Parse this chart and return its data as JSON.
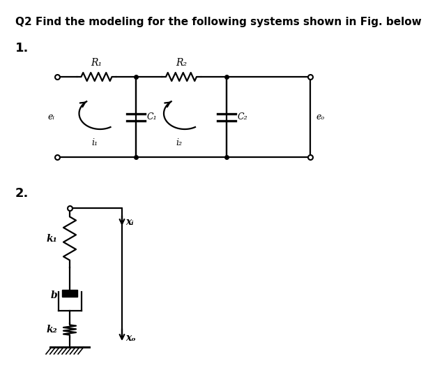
{
  "title": "Q2 Find the modeling for the following systems shown in Fig. below",
  "title_fontsize": 11,
  "label1": "1.",
  "label2": "2.",
  "background_color": "#ffffff",
  "line_color": "#000000",
  "circuit1": {
    "R1_label": "R₁",
    "R2_label": "R₂",
    "C1_label": "C₁",
    "C2_label": "C₂",
    "ei_label": "eᵢ",
    "eo_label": "eₒ",
    "i1_label": "i₁",
    "i2_label": "i₂"
  },
  "circuit2": {
    "k1_label": "k₁",
    "k2_label": "k₂",
    "b_label": "b",
    "Xi_label": "xᵢ",
    "Xo_label": "xₒ"
  }
}
